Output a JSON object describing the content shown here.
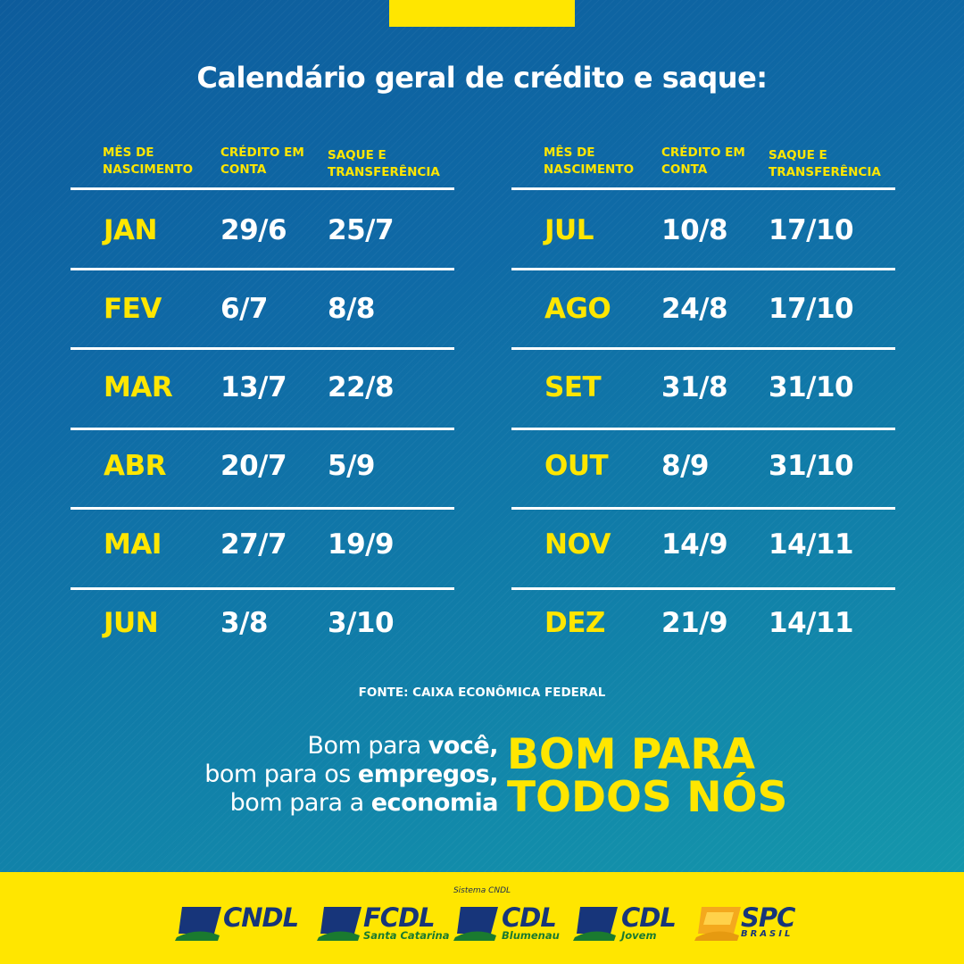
{
  "headline": "Calendário geral de crédito e saque:",
  "columns": {
    "month": "MÊS DE NASCIMENTO",
    "credit": "CRÉDITO EM CONTA",
    "withdraw": "SAQUE E TRANSFERÊNCIA"
  },
  "left_rows": [
    {
      "month": "JAN",
      "credit": "29/6",
      "withdraw": "25/7"
    },
    {
      "month": "FEV",
      "credit": "6/7",
      "withdraw": "8/8"
    },
    {
      "month": "MAR",
      "credit": "13/7",
      "withdraw": "22/8"
    },
    {
      "month": "ABR",
      "credit": "20/7",
      "withdraw": "5/9"
    },
    {
      "month": "MAI",
      "credit": "27/7",
      "withdraw": "19/9"
    },
    {
      "month": "JUN",
      "credit": "3/8",
      "withdraw": "3/10"
    }
  ],
  "right_rows": [
    {
      "month": "JUL",
      "credit": "10/8",
      "withdraw": "17/10"
    },
    {
      "month": "AGO",
      "credit": "24/8",
      "withdraw": "17/10"
    },
    {
      "month": "SET",
      "credit": "31/8",
      "withdraw": "31/10"
    },
    {
      "month": "OUT",
      "credit": "8/9",
      "withdraw": "31/10"
    },
    {
      "month": "NOV",
      "credit": "14/9",
      "withdraw": "14/11"
    },
    {
      "month": "DEZ",
      "credit": "21/9",
      "withdraw": "14/11"
    }
  ],
  "source": "FONTE: CAIXA ECONÔMICA FEDERAL",
  "slogan": {
    "line1_pre": "Bom para ",
    "line1_bold": "você,",
    "line2_pre": "bom para os ",
    "line2_bold": "empregos,",
    "line3_pre": "bom para a ",
    "line3_bold": "economia",
    "big_line1": "BOM PARA",
    "big_line2": "TODOS NÓS"
  },
  "footer": {
    "system_label": "Sistema CNDL",
    "logos": [
      {
        "name": "CNDL",
        "sub": ""
      },
      {
        "name": "FCDL",
        "sub": "Santa Catarina"
      },
      {
        "name": "CDL",
        "sub": "Blumenau"
      },
      {
        "name": "CDL",
        "sub": "Jovem"
      },
      {
        "name": "SPC",
        "sub": "BRASIL"
      }
    ]
  },
  "colors": {
    "accent_yellow": "#ffe600",
    "background_blue": "#0f6aa6",
    "text_white": "#ffffff",
    "logo_blue": "#17357a",
    "logo_green": "#1a7a2f"
  }
}
